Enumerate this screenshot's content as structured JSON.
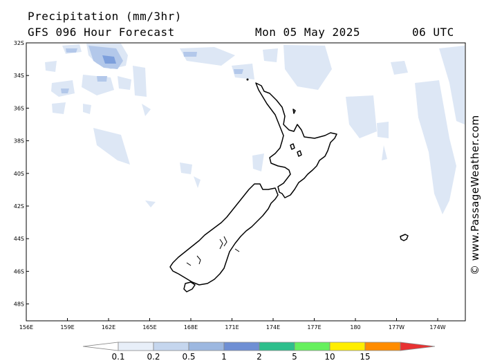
{
  "header": {
    "title": "Precipitation (mm/3hr)",
    "forecast": "GFS 096 Hour Forecast",
    "date": "Mon 05 May 2025",
    "time": "06 UTC"
  },
  "credit": "© www.PassageWeather.com",
  "lat_labels": [
    "32S",
    "34S",
    "36S",
    "38S",
    "40S",
    "42S",
    "44S",
    "46S",
    "48S"
  ],
  "lon_labels": [
    "156E",
    "159E",
    "162E",
    "165E",
    "168E",
    "171E",
    "174E",
    "177E",
    "180",
    "177W",
    "174W"
  ],
  "colorbar": {
    "labels": [
      "0.1",
      "0.2",
      "0.5",
      "1",
      "2",
      "5",
      "10",
      "15"
    ],
    "colors": [
      "#ffffff",
      "#e8eff9",
      "#c5d6ee",
      "#9db8e0",
      "#6f8fd4",
      "#2ebf8c",
      "#66f05e",
      "#ffee00",
      "#ff8c00",
      "#e83232"
    ]
  },
  "colors": {
    "land_outline": "#000000",
    "precip_light": "#dde7f5",
    "precip_medium": "#b3c8ea",
    "precip_heavy": "#7d9fdc"
  }
}
